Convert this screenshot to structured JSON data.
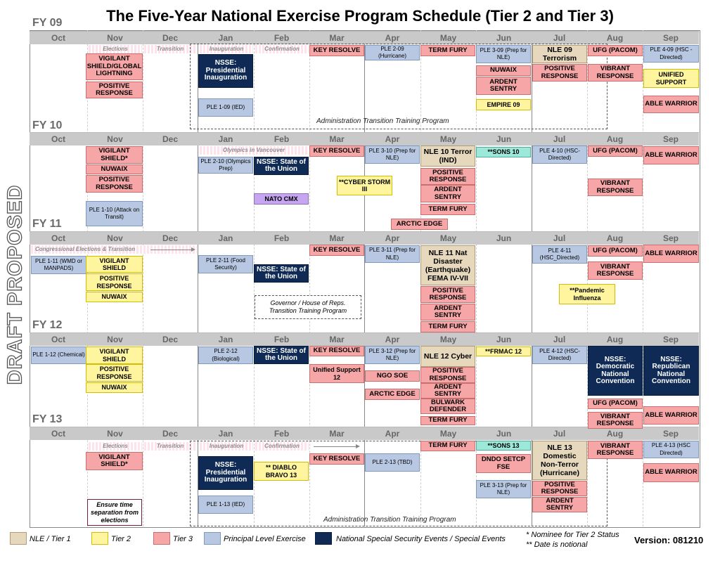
{
  "title": "The Five-Year National Exercise Program Schedule (Tier 2 and Tier 3)",
  "watermark": "DRAFT PROPOSED",
  "fy_labels": [
    "FY 09",
    "FY 10",
    "FY 11",
    "FY 12",
    "FY 13"
  ],
  "months": [
    "Oct",
    "Nov",
    "Dec",
    "Jan",
    "Feb",
    "Mar",
    "Apr",
    "May",
    "Jun",
    "Jul",
    "Aug",
    "Sep"
  ],
  "notes": {
    "elections": "Elections",
    "transition": "Transition",
    "inauguration": "Inauguration",
    "confirmation": "Confirmation",
    "admin_training": "Administration Transition Training Program",
    "olympics": "Olympics in Vancouver",
    "congressional": "Congressional Elections & Transition",
    "governor": "Governor / House of Reps. Transition Training Program",
    "ensure": "Ensure time separation from elections"
  },
  "fy09": {
    "vigilant": "VIGILANT SHIELD/GLOBAL LIGHTNING",
    "positive": "POSITIVE RESPONSE",
    "nsse": "NSSE: Presidential Inauguration",
    "ple109": "PLE 1-09 (IED)",
    "key": "KEY RESOLVE",
    "ple209": "PLE 2-09 (Hurricane)",
    "termfury": "TERM FURY",
    "ple309": "PLE 3-09 (Prep for NLE)",
    "nuwaix": "NUWAIX",
    "ardent": "ARDENT SENTRY",
    "empire": "EMPIRE 09",
    "nle": "NLE 09 Terrorism",
    "positive2": "POSITIVE RESPONSE",
    "ufg": "UFG (PACOM)",
    "vibrant": "VIBRANT RESPONSE",
    "ple409": "PLE 4-09 (HSC -Directed)",
    "unified": "UNIFIED SUPPORT",
    "able": "ABLE WARRIOR"
  },
  "fy10": {
    "vigilant": "VIGILANT SHIELD*",
    "nuwaix": "NUWAIX",
    "positive": "POSITIVE RESPONSE",
    "ple110": "PLE 1-10 (Attack on Transit)",
    "ple210": "PLE 2-10 (Olympics Prep)",
    "nsse": "NSSE: State of the Union",
    "nato": "NATO CMX",
    "key": "KEY RESOLVE",
    "cyber": "**CYBER STORM III",
    "ple310": "PLE 3-10 (Prep for NLE)",
    "arctic": "ARCTIC EDGE",
    "nle": "NLE 10 Terror (IND)",
    "positive2": "POSITIVE RESPONSE",
    "ardent": "ARDENT SENTRY",
    "termfury": "TERM FURY",
    "sons": "**SONS 10",
    "ple410": "PLE 4-10 (HSC-Directed)",
    "ufg": "UFG (PACOM)",
    "vibrant": "VIBRANT RESPONSE",
    "able": "ABLE WARRIOR"
  },
  "fy11": {
    "ple111": "PLE 1-11 (WMD or MANPADS)",
    "vigilant": "VIGILANT SHIELD",
    "positive": "POSITIVE RESPONSE",
    "nuwaix": "NUWAIX",
    "ple211": "PLE 2-11 (Food Security)",
    "nsse": "NSSE: State of the Union",
    "key": "KEY RESOLVE",
    "ple311": "PLE 3-11 (Prep for NLE)",
    "nle": "NLE 11 Nat Disaster (Earthquake) FEMA IV-VII",
    "positive2": "POSITIVE RESPONSE",
    "ardent": "ARDENT SENTRY",
    "termfury": "TERM FURY",
    "ple411": "PLE 4-11 (HSC_Directed)",
    "ufg": "UFG (PACOM)",
    "vibrant": "VIBRANT RESPONSE",
    "pandemic": "**Pandemic Influenza",
    "able": "ABLE WARRIOR"
  },
  "fy12": {
    "ple112": "PLE 1-12 (Chemical)",
    "vigilant": "VIGILANT SHIELD",
    "positive": "POSITIVE RESPONSE",
    "nuwaix": "NUWAIX",
    "ple212": "PLE 2-12 (Biological)",
    "nsse": "NSSE: State of the Union",
    "key": "KEY RESOLVE",
    "unified": "Unified Support 12",
    "ple312": "PLE 3-12 (Prep for NLE)",
    "ngo": "NGO SOE",
    "arctic": "ARCTIC EDGE",
    "nle": "NLE 12 Cyber",
    "positive2": "POSITIVE RESPONSE",
    "ardent": "ARDENT SENTRY",
    "bulwark": "BULWARK DEFENDER",
    "termfury": "TERM FURY",
    "frmac": "**FRMAC 12",
    "ple412": "PLE 4-12 (HSC-Directed)",
    "nsse_dem": "NSSE: Democratic National Convention",
    "nsse_rep": "NSSE: Republican National Convention",
    "ufg": "UFG (PACOM)",
    "vibrant": "VIBRANT RESPONSE",
    "able": "ABLE WARRIOR"
  },
  "fy13": {
    "vigilant": "VIGILANT SHIELD*",
    "nsse": "NSSE: Presidential Inauguration",
    "ple113": "PLE 1-13 (IED)",
    "diablo": "** DIABLO BRAVO 13",
    "key": "KEY RESOLVE",
    "ple213": "PLE 2-13 (TBD)",
    "termfury": "TERM FURY",
    "dndo": "DNDO SETCP FSE",
    "sons": "**SONS 13",
    "ple313": "PLE 3-13 (Prep for NLE)",
    "nle": "NLE 13 Domestic Non-Terror (Hurricane)",
    "positive": "POSITIVE RESPONSE",
    "ardent": "ARDENT SENTRY",
    "vibrant": "VIBRANT RESPONSE",
    "ple413": "PLE 4-13 (HSC Directed)",
    "able": "ABLE WARRIOR"
  },
  "legend": {
    "nle": "NLE / Tier 1",
    "tier2": "Tier 2",
    "tier3": "Tier 3",
    "ple": "Principal Level Exercise",
    "nsse": "National Special Security Events / Special Events",
    "foot1": "* Nominee for Tier 2 Status",
    "foot2": "** Date is notional",
    "version": "Version: 081210"
  }
}
